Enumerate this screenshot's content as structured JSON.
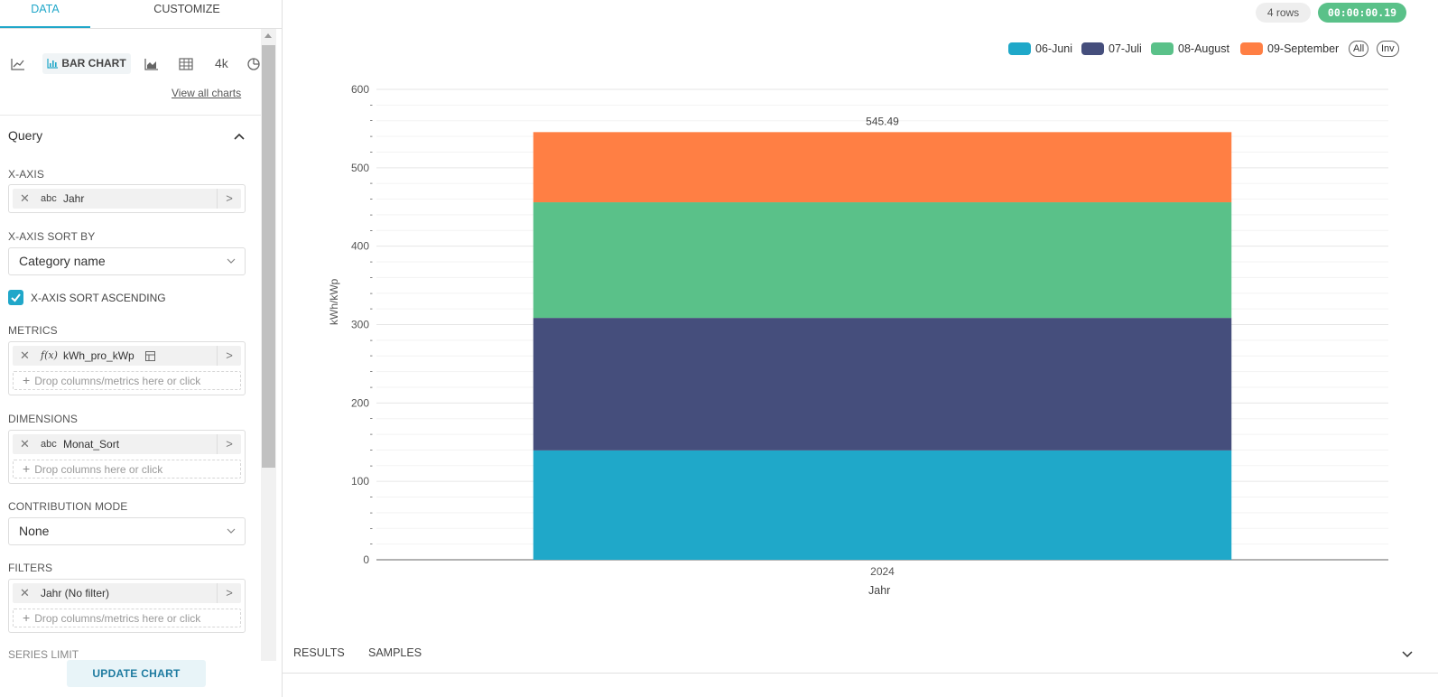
{
  "tabs": {
    "data": "DATA",
    "customize": "CUSTOMIZE"
  },
  "viz": {
    "active_label": "BAR CHART",
    "k4": "4k",
    "view_all": "View all charts"
  },
  "query": {
    "title": "Query",
    "x_axis": {
      "label": "X-AXIS",
      "type": "abc",
      "value": "Jahr"
    },
    "x_sort_by": {
      "label": "X-AXIS SORT BY",
      "value": "Category name"
    },
    "x_sort_asc": {
      "label": "X-AXIS SORT ASCENDING",
      "checked": true
    },
    "metrics": {
      "label": "METRICS",
      "type": "f(x)",
      "value": "kWh_pro_kWp",
      "drop": "Drop columns/metrics here or click"
    },
    "dimensions": {
      "label": "DIMENSIONS",
      "type": "abc",
      "value": "Monat_Sort",
      "drop": "Drop columns here or click"
    },
    "contribution": {
      "label": "CONTRIBUTION MODE",
      "value": "None"
    },
    "filters": {
      "label": "FILTERS",
      "value": "Jahr (No filter)",
      "drop": "Drop columns/metrics here or click"
    },
    "series_limit": "SERIES LIMIT"
  },
  "update_button": "UPDATE CHART",
  "status": {
    "rows": "4 rows",
    "timer": "00:00:00.19"
  },
  "legend_buttons": {
    "all": "All",
    "inv": "Inv"
  },
  "bottom_tabs": {
    "results": "RESULTS",
    "samples": "SAMPLES"
  },
  "colors": {
    "accent": "#20a7c9",
    "success": "#5ac189"
  },
  "chart_data": {
    "type": "bar",
    "stacked": true,
    "categories": [
      "2024"
    ],
    "series": [
      {
        "name": "06-Juni",
        "values": [
          139.5
        ],
        "color": "#1fa8c9"
      },
      {
        "name": "07-Juli",
        "values": [
          169.0
        ],
        "color": "#454e7c"
      },
      {
        "name": "08-August",
        "values": [
          147.5
        ],
        "color": "#5ac189"
      },
      {
        "name": "09-September",
        "values": [
          89.49
        ],
        "color": "#ff7f44"
      }
    ],
    "total_label": "545.49",
    "xlabel": "Jahr",
    "ylabel": "kWh/kWp",
    "ylim": [
      0,
      600
    ],
    "yticks": [
      0,
      100,
      200,
      300,
      400,
      500,
      600
    ],
    "grid": true,
    "legend_position": "top-right"
  }
}
